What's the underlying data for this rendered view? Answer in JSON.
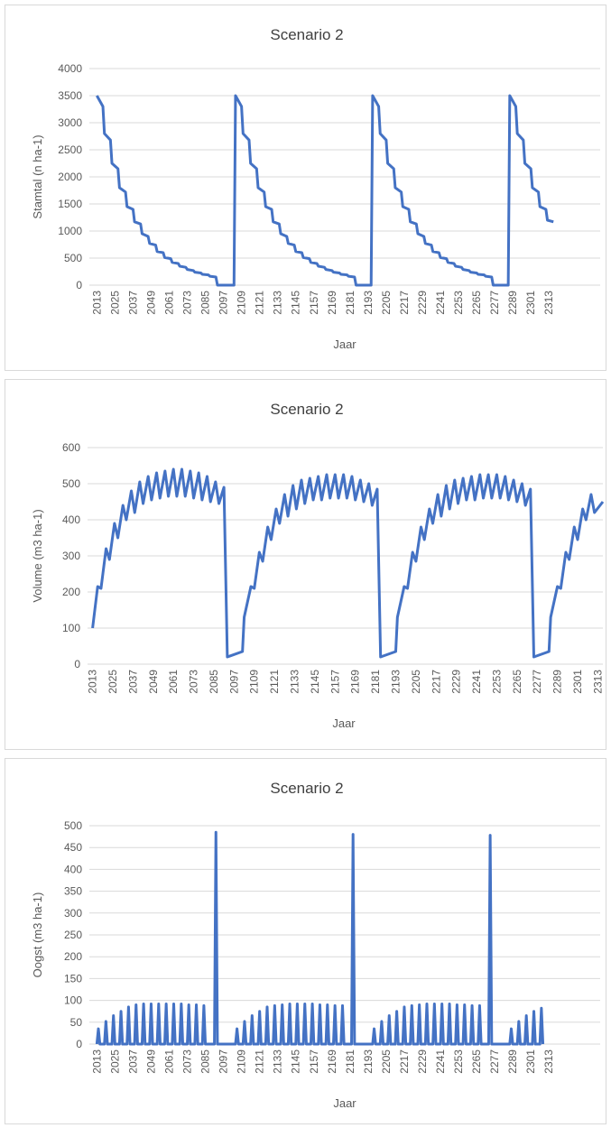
{
  "chart_data": [
    {
      "type": "line",
      "title": "Scenario 2",
      "x_label": "Jaar",
      "y_label": "Stamtal (n ha-1)",
      "color": "#4472c4",
      "grid": true,
      "xlim": [
        2008,
        2347
      ],
      "ylim": [
        0,
        4000
      ],
      "xticks": [
        2013,
        2025,
        2037,
        2049,
        2061,
        2073,
        2085,
        2097,
        2109,
        2121,
        2133,
        2145,
        2157,
        2169,
        2181,
        2193,
        2205,
        2217,
        2229,
        2241,
        2253,
        2265,
        2277,
        2289,
        2301,
        2313
      ],
      "yticks": [
        0,
        500,
        1000,
        1500,
        2000,
        2500,
        3000,
        3500,
        4000
      ],
      "x": [
        2013,
        2017,
        2018,
        2022,
        2023,
        2027,
        2028,
        2032,
        2033,
        2037,
        2038,
        2042,
        2043,
        2047,
        2048,
        2052,
        2053,
        2057,
        2058,
        2062,
        2063,
        2067,
        2068,
        2072,
        2073,
        2077,
        2078,
        2082,
        2083,
        2087,
        2088,
        2092,
        2093,
        2104,
        2105,
        2109,
        2110,
        2114,
        2115,
        2119,
        2120,
        2124,
        2125,
        2129,
        2130,
        2134,
        2135,
        2139,
        2140,
        2144,
        2145,
        2149,
        2150,
        2154,
        2155,
        2159,
        2160,
        2164,
        2165,
        2169,
        2170,
        2174,
        2175,
        2179,
        2180,
        2184,
        2185,
        2195,
        2196,
        2200,
        2201,
        2205,
        2206,
        2210,
        2211,
        2215,
        2216,
        2220,
        2221,
        2225,
        2226,
        2230,
        2231,
        2235,
        2236,
        2240,
        2241,
        2245,
        2246,
        2250,
        2251,
        2255,
        2256,
        2260,
        2261,
        2265,
        2266,
        2270,
        2271,
        2275,
        2276,
        2286,
        2287,
        2291,
        2292,
        2296,
        2297,
        2301,
        2302,
        2306,
        2307,
        2311,
        2312,
        2316
      ],
      "values": [
        3500,
        3300,
        2800,
        2680,
        2250,
        2150,
        1800,
        1720,
        1450,
        1400,
        1170,
        1130,
        950,
        900,
        770,
        740,
        620,
        600,
        510,
        490,
        420,
        400,
        350,
        330,
        290,
        270,
        240,
        225,
        200,
        190,
        165,
        150,
        0,
        0,
        3500,
        3300,
        2800,
        2680,
        2250,
        2150,
        1800,
        1720,
        1450,
        1400,
        1170,
        1130,
        950,
        900,
        770,
        740,
        620,
        600,
        510,
        490,
        420,
        400,
        350,
        330,
        290,
        270,
        240,
        225,
        200,
        190,
        165,
        150,
        0,
        0,
        3500,
        3300,
        2800,
        2680,
        2250,
        2150,
        1800,
        1720,
        1450,
        1400,
        1170,
        1130,
        950,
        900,
        770,
        740,
        620,
        600,
        510,
        490,
        420,
        400,
        350,
        330,
        290,
        270,
        240,
        225,
        200,
        190,
        165,
        150,
        0,
        0,
        3500,
        3300,
        2800,
        2680,
        2250,
        2150,
        1800,
        1720,
        1450,
        1400,
        1200,
        1170
      ]
    },
    {
      "type": "line",
      "title": "Scenario 2",
      "x_label": "Jaar",
      "y_label": "Volume (m3 ha-1)",
      "color": "#4472c4",
      "grid": true,
      "xlim": [
        2010,
        2316
      ],
      "ylim": [
        0,
        600
      ],
      "xticks": [
        2013,
        2025,
        2037,
        2049,
        2061,
        2073,
        2085,
        2097,
        2109,
        2121,
        2133,
        2145,
        2157,
        2169,
        2181,
        2193,
        2205,
        2217,
        2229,
        2241,
        2253,
        2265,
        2277,
        2289,
        2301,
        2313
      ],
      "yticks": [
        0,
        100,
        200,
        300,
        400,
        500,
        600
      ],
      "x": [
        2013,
        2016,
        2018,
        2021,
        2023,
        2026,
        2028,
        2031,
        2033,
        2036,
        2038,
        2041,
        2043,
        2046,
        2048,
        2051,
        2053,
        2056,
        2058,
        2061,
        2063,
        2066,
        2068,
        2071,
        2073,
        2076,
        2078,
        2081,
        2083,
        2086,
        2088,
        2091,
        2093,
        2102,
        2103,
        2107,
        2109,
        2112,
        2114,
        2117,
        2119,
        2122,
        2124,
        2127,
        2129,
        2132,
        2134,
        2137,
        2139,
        2142,
        2144,
        2147,
        2149,
        2152,
        2154,
        2157,
        2159,
        2162,
        2164,
        2167,
        2169,
        2172,
        2174,
        2177,
        2179,
        2182,
        2184,
        2193,
        2194,
        2198,
        2200,
        2203,
        2205,
        2208,
        2210,
        2213,
        2215,
        2218,
        2220,
        2223,
        2225,
        2228,
        2230,
        2233,
        2235,
        2238,
        2240,
        2243,
        2245,
        2248,
        2250,
        2253,
        2255,
        2258,
        2260,
        2263,
        2265,
        2268,
        2270,
        2273,
        2275,
        2284,
        2285,
        2289,
        2291,
        2294,
        2296,
        2299,
        2301,
        2304,
        2306,
        2309,
        2311,
        2316
      ],
      "values": [
        100,
        215,
        210,
        320,
        290,
        390,
        350,
        440,
        400,
        480,
        420,
        505,
        445,
        520,
        455,
        530,
        460,
        535,
        465,
        540,
        465,
        540,
        465,
        535,
        460,
        530,
        455,
        520,
        450,
        505,
        445,
        490,
        20,
        35,
        130,
        215,
        210,
        310,
        285,
        380,
        345,
        430,
        390,
        470,
        410,
        495,
        430,
        510,
        445,
        515,
        455,
        520,
        455,
        525,
        460,
        525,
        460,
        525,
        460,
        520,
        455,
        510,
        450,
        500,
        440,
        485,
        20,
        35,
        130,
        215,
        210,
        310,
        285,
        380,
        345,
        430,
        390,
        470,
        410,
        495,
        430,
        510,
        445,
        515,
        455,
        520,
        455,
        525,
        460,
        525,
        460,
        525,
        460,
        520,
        455,
        510,
        450,
        500,
        440,
        485,
        20,
        35,
        130,
        215,
        210,
        310,
        290,
        380,
        345,
        430,
        400,
        470,
        420,
        450
      ]
    },
    {
      "type": "line",
      "title": "Scenario 2",
      "x_label": "Jaar",
      "y_label": "Oogst (m3 ha-1)",
      "color": "#4472c4",
      "grid": true,
      "xlim": [
        2008,
        2347
      ],
      "ylim": [
        0,
        500
      ],
      "xticks": [
        2013,
        2025,
        2037,
        2049,
        2061,
        2073,
        2085,
        2097,
        2109,
        2121,
        2133,
        2145,
        2157,
        2169,
        2181,
        2193,
        2205,
        2217,
        2229,
        2241,
        2253,
        2265,
        2277,
        2289,
        2301,
        2313
      ],
      "yticks": [
        0,
        50,
        100,
        150,
        200,
        250,
        300,
        350,
        400,
        450,
        500
      ],
      "x": [
        2013,
        2014,
        2015,
        2018,
        2019,
        2020,
        2023,
        2024,
        2025,
        2028,
        2029,
        2030,
        2033,
        2034,
        2035,
        2038,
        2039,
        2040,
        2043,
        2044,
        2045,
        2048,
        2049,
        2050,
        2053,
        2054,
        2055,
        2058,
        2059,
        2060,
        2063,
        2064,
        2065,
        2068,
        2069,
        2070,
        2073,
        2074,
        2075,
        2078,
        2079,
        2080,
        2083,
        2084,
        2085,
        2091,
        2092,
        2093,
        2105,
        2106,
        2107,
        2110,
        2111,
        2112,
        2115,
        2116,
        2117,
        2120,
        2121,
        2122,
        2125,
        2126,
        2127,
        2130,
        2131,
        2132,
        2135,
        2136,
        2137,
        2140,
        2141,
        2142,
        2145,
        2146,
        2147,
        2150,
        2151,
        2152,
        2155,
        2156,
        2157,
        2160,
        2161,
        2162,
        2165,
        2166,
        2167,
        2170,
        2171,
        2172,
        2175,
        2176,
        2177,
        2182,
        2183,
        2184,
        2196,
        2197,
        2198,
        2201,
        2202,
        2203,
        2206,
        2207,
        2208,
        2211,
        2212,
        2213,
        2216,
        2217,
        2218,
        2221,
        2222,
        2223,
        2226,
        2227,
        2228,
        2231,
        2232,
        2233,
        2236,
        2237,
        2238,
        2241,
        2242,
        2243,
        2246,
        2247,
        2248,
        2251,
        2252,
        2253,
        2256,
        2257,
        2258,
        2261,
        2262,
        2263,
        2266,
        2267,
        2268,
        2273,
        2274,
        2275,
        2287,
        2288,
        2289,
        2292,
        2293,
        2294,
        2297,
        2298,
        2299,
        2302,
        2303,
        2304,
        2307,
        2308,
        2309
      ],
      "values": [
        0,
        35,
        0,
        0,
        52,
        0,
        0,
        65,
        0,
        0,
        75,
        0,
        0,
        85,
        0,
        0,
        90,
        0,
        0,
        92,
        0,
        0,
        92,
        0,
        0,
        92,
        0,
        0,
        92,
        0,
        0,
        92,
        0,
        0,
        92,
        0,
        0,
        90,
        0,
        0,
        90,
        0,
        0,
        88,
        0,
        0,
        485,
        0,
        0,
        35,
        0,
        0,
        52,
        0,
        0,
        65,
        0,
        0,
        75,
        0,
        0,
        85,
        0,
        0,
        88,
        0,
        0,
        90,
        0,
        0,
        92,
        0,
        0,
        92,
        0,
        0,
        92,
        0,
        0,
        92,
        0,
        0,
        90,
        0,
        0,
        90,
        0,
        0,
        88,
        0,
        0,
        88,
        0,
        0,
        480,
        0,
        0,
        35,
        0,
        0,
        52,
        0,
        0,
        65,
        0,
        0,
        75,
        0,
        0,
        85,
        0,
        0,
        88,
        0,
        0,
        90,
        0,
        0,
        92,
        0,
        0,
        92,
        0,
        0,
        92,
        0,
        0,
        92,
        0,
        0,
        90,
        0,
        0,
        90,
        0,
        0,
        88,
        0,
        0,
        88,
        0,
        0,
        478,
        0,
        0,
        35,
        0,
        0,
        52,
        0,
        0,
        65,
        0,
        0,
        75,
        0,
        0,
        82,
        0
      ]
    }
  ]
}
